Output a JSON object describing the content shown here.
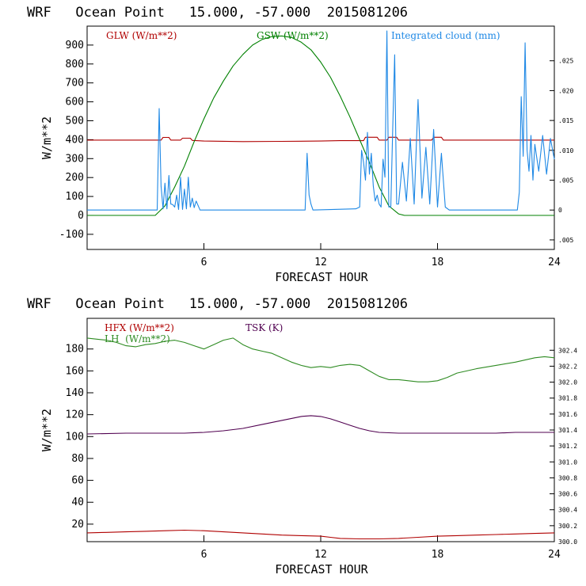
{
  "chart_data": [
    {
      "type": "line",
      "title": "WRF   Ocean Point   15.000, -57.000  2015081206",
      "xlabel": "FORECAST HOUR",
      "ylabel": "W/m**2",
      "xlim": [
        0,
        24
      ],
      "ylim": [
        -180,
        1000
      ],
      "x_ticks": [
        6,
        12,
        18,
        24
      ],
      "x_tick_labels": [
        "6",
        "12",
        "18",
        "24"
      ],
      "y_ticks": [
        -100,
        0,
        100,
        200,
        300,
        400,
        500,
        600,
        700,
        800,
        900
      ],
      "y_tick_labels": [
        "-100",
        "0",
        "100",
        "200",
        "300",
        "400",
        "500",
        "600",
        "700",
        "800",
        "900"
      ],
      "y2lim": [
        -0.0066,
        0.0308
      ],
      "y2_ticks": [
        -0.005,
        0,
        0.005,
        0.01,
        0.015,
        0.02,
        0.025
      ],
      "y2_tick_labels": [
        ".005",
        "0",
        ".005",
        ".010",
        ".015",
        ".020",
        ".025"
      ],
      "legend_placement": "top",
      "series": [
        {
          "name": "GLW (W/m**2)",
          "color": "#b00000",
          "axis": "left",
          "x": [
            0,
            3.8,
            3.9,
            4.2,
            4.3,
            4.8,
            4.9,
            5.3,
            5.4,
            6,
            8,
            10,
            12,
            13,
            14.2,
            14.3,
            14.9,
            15,
            15.4,
            15.5,
            15.9,
            16,
            17,
            17.7,
            17.8,
            18.2,
            18.3,
            20,
            22,
            24
          ],
          "values": [
            398,
            398,
            412,
            412,
            398,
            398,
            408,
            408,
            396,
            393,
            390,
            391,
            393,
            395,
            395,
            413,
            413,
            398,
            398,
            413,
            413,
            398,
            398,
            398,
            413,
            413,
            398,
            398,
            398,
            398
          ]
        },
        {
          "name": "GSW (W/m**2)",
          "color": "#008000",
          "axis": "left",
          "x": [
            0,
            3.5,
            4,
            4.5,
            5,
            5.5,
            6,
            6.5,
            7,
            7.5,
            8,
            8.5,
            9,
            9.5,
            10,
            10.5,
            11,
            11.5,
            12,
            12.5,
            13,
            13.5,
            14,
            14.5,
            15,
            15.5,
            16,
            16.3,
            24
          ],
          "values": [
            0,
            0,
            50,
            150,
            260,
            390,
            510,
            620,
            710,
            790,
            850,
            900,
            930,
            945,
            948,
            940,
            915,
            875,
            810,
            730,
            630,
            520,
            400,
            280,
            150,
            50,
            8,
            0,
            0
          ]
        },
        {
          "name": "Integrated cloud (mm)",
          "color": "#1e88e5",
          "axis": "right",
          "x": [
            0,
            3.6,
            3.7,
            3.8,
            3.9,
            4.0,
            4.1,
            4.2,
            4.3,
            4.4,
            4.5,
            4.6,
            4.7,
            4.8,
            4.9,
            5.0,
            5.1,
            5.2,
            5.3,
            5.4,
            5.5,
            5.6,
            5.8,
            11.2,
            11.3,
            11.4,
            11.5,
            11.6,
            13.8,
            14.0,
            14.1,
            14.2,
            14.3,
            14.4,
            14.5,
            14.6,
            14.7,
            14.8,
            14.9,
            15.0,
            15.1,
            15.2,
            15.3,
            15.4,
            15.5,
            15.6,
            15.7,
            15.8,
            15.9,
            16.0,
            16.2,
            16.4,
            16.6,
            16.8,
            17.0,
            17.2,
            17.4,
            17.6,
            17.8,
            18.0,
            18.2,
            18.4,
            18.6,
            22.1,
            22.2,
            22.3,
            22.4,
            22.5,
            22.6,
            22.7,
            22.8,
            22.9,
            23.0,
            23.2,
            23.4,
            23.6,
            23.8,
            24.0
          ],
          "values": [
            0,
            0,
            0.017,
            0.004,
            0.0002,
            0.0045,
            0.0002,
            0.0058,
            0.001,
            0.0009,
            0.0005,
            0.0025,
            0.0001,
            0.0055,
            0.0001,
            0.0035,
            0.0002,
            0.0055,
            0.0005,
            0.002,
            0.0004,
            0.0015,
            0,
            0,
            0.0095,
            0.0025,
            0.001,
            0,
            0.0002,
            0.0005,
            0.01,
            0.008,
            0.005,
            0.013,
            0.006,
            0.0095,
            0.004,
            0.0015,
            0.0025,
            0.001,
            0.0005,
            0.0085,
            0.0055,
            0.03,
            0.0005,
            0.0005,
            0.014,
            0.026,
            0.001,
            0.001,
            0.008,
            0.0015,
            0.012,
            0.001,
            0.0185,
            0.002,
            0.0105,
            0.001,
            0.0135,
            0.0005,
            0.0095,
            0.0005,
            0,
            0,
            0.003,
            0.019,
            0.009,
            0.028,
            0.01,
            0.0065,
            0.0125,
            0.005,
            0.011,
            0.0065,
            0.0125,
            0.006,
            0.012,
            0.0085
          ]
        }
      ]
    },
    {
      "type": "line",
      "title": "WRF   Ocean Point   15.000, -57.000  2015081206",
      "xlabel": "FORECAST HOUR",
      "ylabel": "W/m**2",
      "xlim": [
        0,
        24
      ],
      "ylim": [
        4,
        208
      ],
      "x_ticks": [
        6,
        12,
        18,
        24
      ],
      "x_tick_labels": [
        "6",
        "12",
        "18",
        "24"
      ],
      "y_ticks": [
        20,
        40,
        60,
        80,
        100,
        120,
        140,
        160,
        180
      ],
      "y_tick_labels": [
        "20",
        "40",
        "60",
        "80",
        "100",
        "120",
        "140",
        "160",
        "180"
      ],
      "y2lim": [
        300,
        302.8
      ],
      "y2_ticks": [
        300.0,
        300.2,
        300.4,
        300.6,
        300.8,
        301.0,
        301.2,
        301.4,
        301.6,
        301.8,
        302.0,
        302.2,
        302.4
      ],
      "y2_tick_labels": [
        "300.0",
        "300.2",
        "300.4",
        "300.6",
        "300.8",
        "301.0",
        "301.2",
        "301.4",
        "301.6",
        "301.8",
        "302.0",
        "302.2",
        "302.4"
      ],
      "legend_placement": "top-left",
      "series": [
        {
          "name": "HFX (W/m**2)",
          "color": "#b00000",
          "axis": "left",
          "x": [
            0,
            1,
            2,
            3,
            4,
            5,
            6,
            7,
            8,
            9,
            10,
            11,
            12,
            12.5,
            13,
            14,
            15,
            16,
            17,
            18,
            19,
            20,
            21,
            22,
            23,
            24
          ],
          "values": [
            12,
            12.5,
            13,
            13.5,
            14,
            14.5,
            14,
            13,
            12,
            11,
            10,
            9.5,
            9,
            8,
            7,
            6.5,
            6.5,
            7,
            8,
            9,
            9.5,
            10,
            10.5,
            11,
            11.5,
            12
          ]
        },
        {
          "name": "LH  (W/m**2)",
          "color": "#2e8b22",
          "axis": "left",
          "x": [
            0,
            0.5,
            1,
            1.5,
            2,
            2.5,
            3,
            3.5,
            4,
            4.5,
            5,
            5.5,
            6,
            6.5,
            7,
            7.5,
            8,
            8.5,
            9,
            9.5,
            10,
            10.5,
            11,
            11.5,
            12,
            12.5,
            13,
            13.5,
            14,
            14.5,
            15,
            15.5,
            16,
            16.5,
            17,
            17.5,
            18,
            18.5,
            19,
            19.5,
            20,
            21,
            22,
            23,
            23.5,
            24
          ],
          "values": [
            190,
            189,
            188,
            186,
            183,
            182,
            184,
            185,
            187,
            188,
            186,
            183,
            180,
            184,
            188,
            190,
            184,
            180,
            178,
            176,
            172,
            168,
            165,
            163,
            164,
            163,
            165,
            166,
            165,
            160,
            155,
            152,
            152,
            151,
            150,
            150,
            151,
            154,
            158,
            160,
            162,
            165,
            168,
            172,
            173,
            172
          ],
          "name_label": "LH  (W/m**2)"
        },
        {
          "name": "TSK (K)",
          "color": "#500050",
          "axis": "right",
          "x": [
            0,
            2,
            4,
            5,
            6,
            7,
            8,
            9,
            10,
            11,
            11.5,
            12,
            12.5,
            13,
            13.5,
            14,
            14.5,
            15,
            16,
            17,
            18,
            19,
            20,
            21,
            22,
            23,
            24
          ],
          "values": [
            301.35,
            301.36,
            301.36,
            301.36,
            301.37,
            301.39,
            301.42,
            301.47,
            301.52,
            301.57,
            301.58,
            301.57,
            301.54,
            301.5,
            301.46,
            301.42,
            301.39,
            301.37,
            301.36,
            301.36,
            301.36,
            301.36,
            301.36,
            301.36,
            301.37,
            301.37,
            301.37
          ]
        }
      ]
    }
  ],
  "colors": {
    "frame": "#000000",
    "red": "#b00000",
    "green": "#008000",
    "blue": "#1e88e5",
    "purple": "#500050"
  }
}
